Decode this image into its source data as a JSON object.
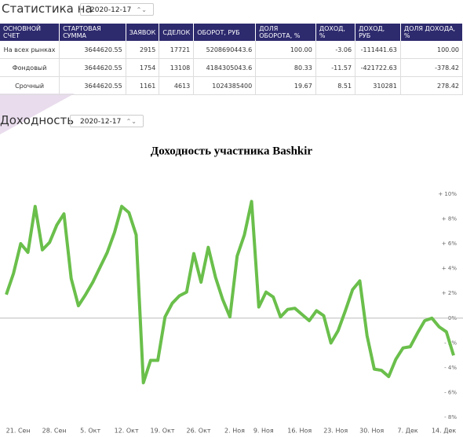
{
  "stats": {
    "title": "Статистика на",
    "date": "2020-12-17",
    "table": {
      "columns": [
        "ОСНОВНОЙ СЧЕТ",
        "СТАРТОВАЯ СУММА",
        "ЗАЯВОК",
        "СДЕЛОК",
        "ОБОРОТ, РУБ",
        "ДОЛЯ ОБОРОТА, %",
        "ДОХОД, %",
        "ДОХОД, РУБ",
        "ДОЛЯ ДОХОДА, %"
      ],
      "rows": [
        [
          "На всех рынках",
          "3644620.55",
          "2915",
          "17721",
          "5208690443.6",
          "100.00",
          "-3.06",
          "-111441.63",
          "100.00"
        ],
        [
          "Фондовый",
          "3644620.55",
          "1754",
          "13108",
          "4184305043.6",
          "80.33",
          "-11.57",
          "-421722.63",
          "-378.42"
        ],
        [
          "Срочный",
          "3644620.55",
          "1161",
          "4613",
          "1024385400",
          "19.67",
          "8.51",
          "310281",
          "278.42"
        ]
      ]
    }
  },
  "returns": {
    "title": "Доходность",
    "date": "2020-12-17"
  },
  "chart_data": {
    "type": "line",
    "title": "Доходность участника Bashkir",
    "color": "#6abf4b",
    "categories": [
      null,
      "21. Сен",
      null,
      null,
      null,
      null,
      "28. Сен",
      null,
      null,
      null,
      null,
      "5. Окт",
      null,
      null,
      null,
      null,
      "12. Окт",
      null,
      null,
      null,
      null,
      "19. Окт",
      null,
      null,
      null,
      null,
      "26. Окт",
      null,
      null,
      null,
      null,
      "2. Ноя",
      null,
      null,
      null,
      "9. Ноя",
      null,
      null,
      null,
      null,
      "16. Ноя",
      null,
      null,
      null,
      null,
      "23. Ноя",
      null,
      null,
      null,
      null,
      "30. Ноя",
      null,
      null,
      null,
      null,
      "7. Дек",
      null,
      null,
      null,
      null,
      "14. Дек",
      null,
      null
    ],
    "values": [
      1.9,
      3.6,
      6.0,
      5.3,
      9.0,
      5.5,
      6.1,
      7.5,
      8.4,
      3.2,
      1.0,
      1.9,
      2.9,
      4.1,
      5.3,
      6.9,
      9.0,
      8.5,
      6.7,
      -5.2,
      -3.4,
      -3.4,
      0.1,
      1.2,
      1.8,
      2.1,
      5.2,
      2.9,
      5.7,
      3.3,
      1.5,
      0.1,
      5.0,
      6.7,
      9.4,
      0.9,
      2.1,
      1.7,
      0.1,
      0.7,
      0.8,
      0.3,
      -0.2,
      0.6,
      0.2,
      -2.0,
      -1.0,
      0.6,
      2.3,
      3.0,
      -1.4,
      -4.1,
      -4.2,
      -4.7,
      -3.3,
      -2.4,
      -2.3,
      -1.2,
      -0.2,
      0.0,
      -0.7,
      -1.1,
      -3.0
    ],
    "ylim": [
      -9,
      11
    ],
    "yticks": [
      {
        "value": 10,
        "label": "+ 10%"
      },
      {
        "value": 8,
        "label": "+ 8%"
      },
      {
        "value": 6,
        "label": "+ 6%"
      },
      {
        "value": 4,
        "label": "+ 4%"
      },
      {
        "value": 2,
        "label": "+ 2%"
      },
      {
        "value": 0,
        "label": "0%"
      },
      {
        "value": -2,
        "label": "- 2%"
      },
      {
        "value": -4,
        "label": "- 4%"
      },
      {
        "value": -6,
        "label": "- 6%"
      },
      {
        "value": -8,
        "label": "- 8%"
      }
    ],
    "zero_line": true
  }
}
